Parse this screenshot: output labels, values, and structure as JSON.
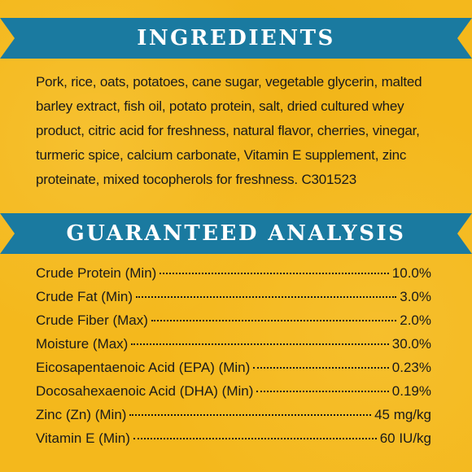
{
  "ingredients_section": {
    "title": "INGREDIENTS",
    "text": "Pork, rice, oats, potatoes, cane sugar, vegetable glycerin, malted barley extract, fish oil, potato protein, salt, dried cultured whey product, citric acid for freshness, natural flavor, cherries, vinegar, turmeric spice, calcium carbonate, Vitamin E supplement, zinc proteinate, mixed tocopherols for freshness. C301523"
  },
  "analysis_section": {
    "title": "GUARANTEED ANALYSIS",
    "rows": [
      {
        "label": "Crude Protein (Min)",
        "value": "10.0%"
      },
      {
        "label": "Crude Fat (Min)",
        "value": "3.0%"
      },
      {
        "label": "Crude Fiber (Max)",
        "value": "2.0%"
      },
      {
        "label": "Moisture (Max)",
        "value": "30.0%"
      },
      {
        "label": "Eicosapentaenoic Acid (EPA) (Min)",
        "value": "0.23%"
      },
      {
        "label": "Docosahexaenoic Acid (DHA) (Min)",
        "value": "0.19%"
      },
      {
        "label": "Zinc (Zn) (Min)",
        "value": "45 mg/kg"
      },
      {
        "label": "Vitamin E (Min)",
        "value": "60 IU/kg"
      }
    ]
  },
  "colors": {
    "background": "#f4b81c",
    "banner": "#1a7aa0",
    "text": "#1a1a1a"
  }
}
